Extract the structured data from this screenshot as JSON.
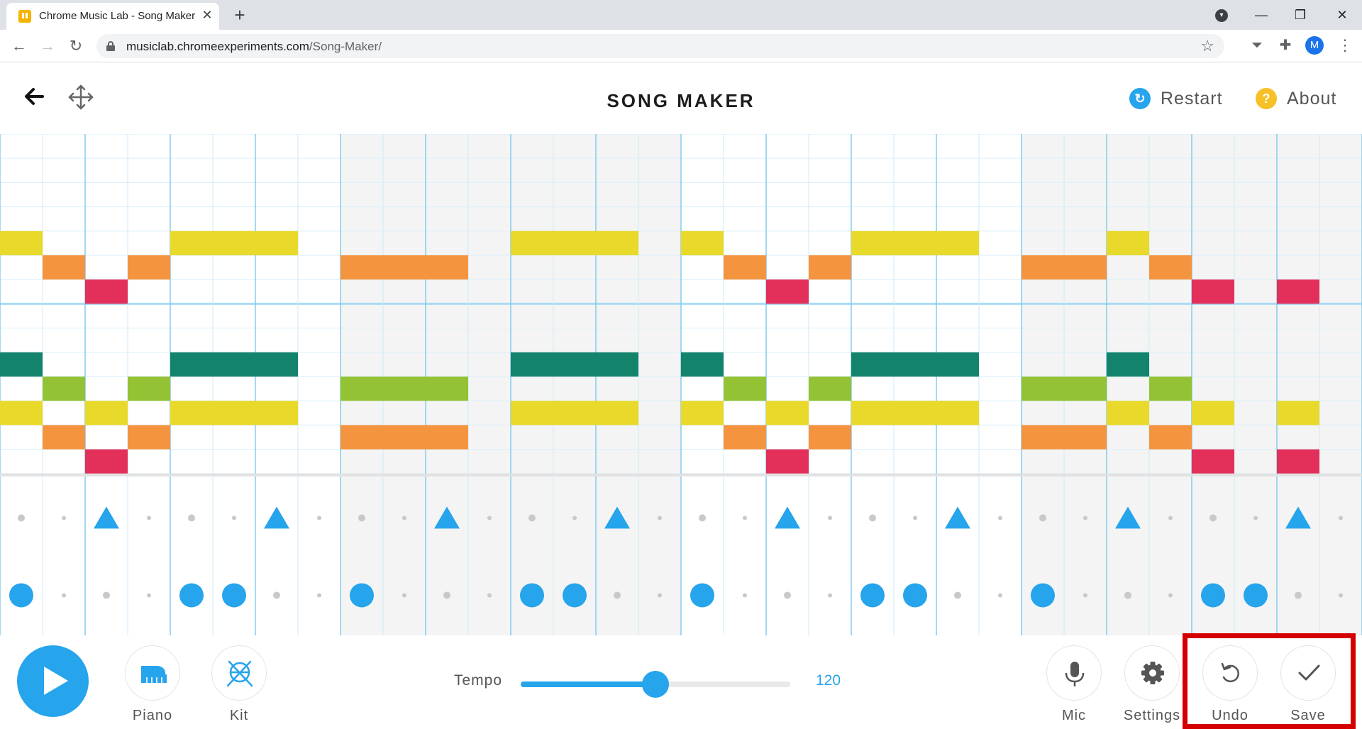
{
  "browser": {
    "tab_title": "Chrome Music Lab - Song Maker",
    "url_host": "musiclab.chromeexperiments.com",
    "url_path": "/Song-Maker/",
    "profile_initial": "M"
  },
  "header": {
    "title": "SONG MAKER",
    "restart_label": "Restart",
    "about_label": "About",
    "about_icon_text": "?"
  },
  "colors": {
    "yellow": "#e9d92a",
    "orange": "#f5943f",
    "red": "#e3305b",
    "teal": "#14836b",
    "green": "#93c234",
    "blue": "#26a4ec",
    "highlight": "#d40000"
  },
  "grid": {
    "columns": 32,
    "melody_rows": 14,
    "percussion_rows": 2,
    "notes": [
      {
        "row": 4,
        "cols": [
          0,
          4,
          5,
          6,
          12,
          13,
          14,
          16,
          20,
          21,
          22,
          26
        ],
        "color": "yellow"
      },
      {
        "row": 5,
        "cols": [
          1,
          3,
          8,
          9,
          10,
          17,
          19,
          24,
          25,
          27
        ],
        "color": "orange"
      },
      {
        "row": 6,
        "cols": [
          2,
          18,
          28,
          30
        ],
        "color": "red"
      },
      {
        "row": 9,
        "cols": [
          0,
          4,
          5,
          6,
          12,
          13,
          14,
          16,
          20,
          21,
          22,
          26
        ],
        "color": "teal"
      },
      {
        "row": 10,
        "cols": [
          1,
          3,
          8,
          9,
          10,
          17,
          19,
          24,
          25,
          27
        ],
        "color": "green"
      },
      {
        "row": 11,
        "cols": [
          0,
          2,
          4,
          5,
          6,
          12,
          13,
          14,
          16,
          18,
          20,
          21,
          22,
          26,
          28,
          30
        ],
        "color": "yellow"
      },
      {
        "row": 12,
        "cols": [
          1,
          3,
          8,
          9,
          10,
          17,
          19,
          24,
          25,
          27
        ],
        "color": "orange"
      },
      {
        "row": 13,
        "cols": [
          2,
          18,
          28,
          30
        ],
        "color": "red"
      }
    ],
    "percussion_triangles": [
      2,
      6,
      10,
      14,
      18,
      22,
      26,
      30
    ],
    "percussion_circles": [
      0,
      4,
      5,
      8,
      12,
      13,
      16,
      20,
      21,
      24,
      28,
      29
    ]
  },
  "controls": {
    "piano_label": "Piano",
    "kit_label": "Kit",
    "tempo_label": "Tempo",
    "tempo_value": "120",
    "tempo_fraction": 0.5,
    "mic_label": "Mic",
    "settings_label": "Settings",
    "undo_label": "Undo",
    "save_label": "Save"
  }
}
